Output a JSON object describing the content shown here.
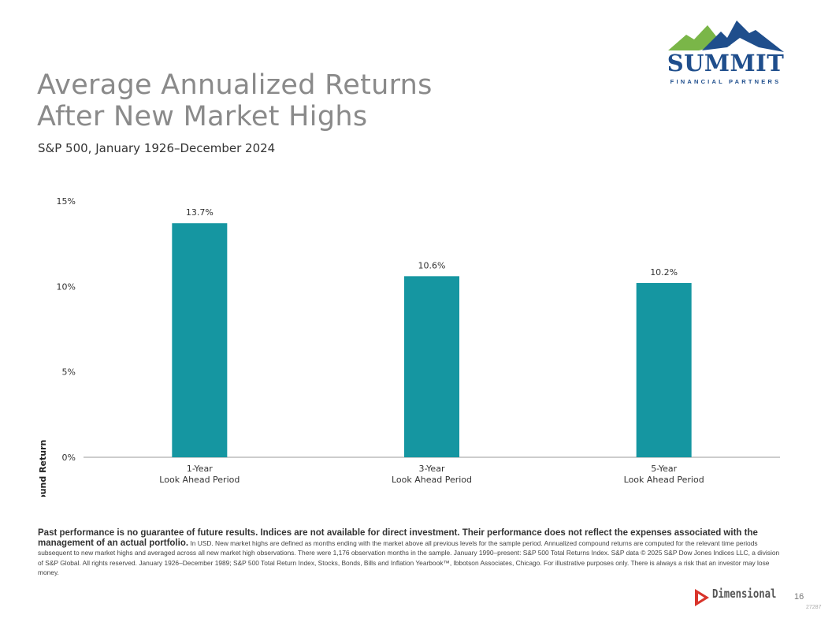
{
  "header": {
    "title_line1": "Average Annualized Returns",
    "title_line2": "After New Market Highs",
    "subtitle": "S&P 500, January 1926–December 2024"
  },
  "logo": {
    "name": "SUMMIT",
    "tagline": "FINANCIAL PARTNERS",
    "colors": {
      "mountain_green": "#7ab648",
      "mountain_blue": "#1f4e8c"
    }
  },
  "chart_data": {
    "type": "bar",
    "categories": [
      "1-Year\nLook Ahead Period",
      "3-Year\nLook Ahead Period",
      "5-Year\nLook Ahead Period"
    ],
    "values": [
      13.7,
      10.6,
      10.2
    ],
    "data_labels": [
      "13.7%",
      "10.6%",
      "10.2%"
    ],
    "ylabel": "Annualized Compound Return",
    "xlabel": "",
    "ylim": [
      0,
      15
    ],
    "yticks": [
      0,
      5,
      10,
      15
    ],
    "ytick_labels": [
      "0%",
      "5%",
      "10%",
      "15%"
    ],
    "grid": false,
    "bar_color": "#1596a1"
  },
  "footnote": {
    "lead": "Past performance is no guarantee of future results. Indices are not available for direct investment. Their performance does not reflect the expenses associated with the management of an actual portfolio.",
    "body": "In USD. New market highs are defined as months ending with the market above all previous levels for the sample period. Annualized compound returns are computed for the relevant time periods subsequent to new market highs and averaged across all new market high observations. There were 1,176 observation months in the sample. January 1990–present: S&P 500 Total Returns Index. S&P data © 2025 S&P Dow Jones Indices LLC, a division of S&P Global. All rights reserved. January 1926–December 1989; S&P 500 Total Return Index, Stocks, Bonds, Bills and Inflation Yearbook™, Ibbotson Associates, Chicago. For illustrative purposes only. There is always a risk that an investor may lose money."
  },
  "footer": {
    "brand": "Dimensional",
    "page_number": "16",
    "doc_code": "27287"
  }
}
